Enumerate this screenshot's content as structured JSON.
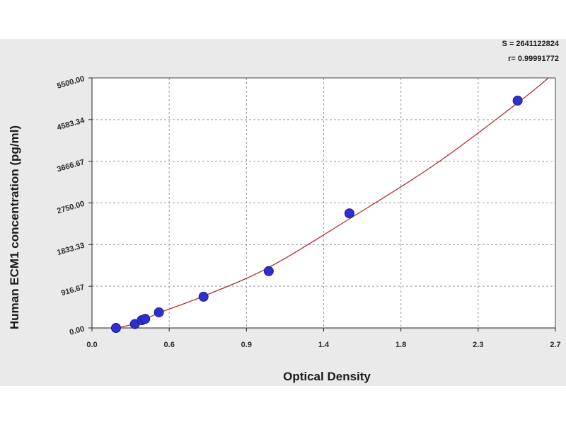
{
  "chart_data": {
    "type": "scatter",
    "xlabel": "Optical Density",
    "ylabel": "Human ECM1 concentration (pg/ml)",
    "xlim": [
      0,
      2.7
    ],
    "ylim": [
      0,
      5500
    ],
    "x_ticks": [
      "0.0",
      "0.6",
      "0.9",
      "1.4",
      "1.8",
      "2.3",
      "2.7"
    ],
    "y_ticks": [
      "0.00",
      "916.67",
      "1833.33",
      "2750.00",
      "3666.67",
      "4583.34",
      "5500.00"
    ],
    "grid": true,
    "stats": [
      "S = 2641122824",
      "r= 0.99991772"
    ],
    "colors": {
      "points": "#2f2fd0",
      "curve": "#b03030",
      "grid": "#9a9a9a"
    },
    "points": [
      {
        "x": 0.14,
        "y": 0
      },
      {
        "x": 0.25,
        "y": 86
      },
      {
        "x": 0.29,
        "y": 171
      },
      {
        "x": 0.31,
        "y": 200
      },
      {
        "x": 0.39,
        "y": 343
      },
      {
        "x": 0.65,
        "y": 687
      },
      {
        "x": 1.03,
        "y": 1250
      },
      {
        "x": 1.5,
        "y": 2520
      },
      {
        "x": 2.48,
        "y": 5000
      }
    ],
    "curve": [
      {
        "x": 0.14,
        "y": 0
      },
      {
        "x": 0.25,
        "y": 95
      },
      {
        "x": 0.39,
        "y": 330
      },
      {
        "x": 0.65,
        "y": 700
      },
      {
        "x": 1.03,
        "y": 1330
      },
      {
        "x": 1.5,
        "y": 2400
      },
      {
        "x": 2.0,
        "y": 3600
      },
      {
        "x": 2.48,
        "y": 4950
      },
      {
        "x": 2.66,
        "y": 5500
      }
    ]
  }
}
